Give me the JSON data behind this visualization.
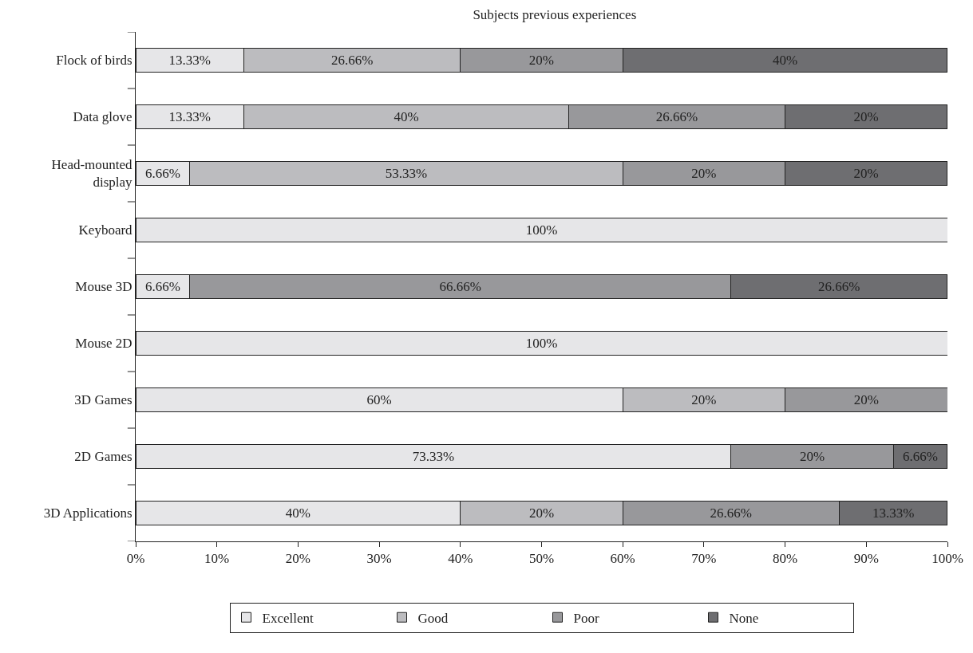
{
  "chart_data": {
    "type": "bar",
    "orientation": "horizontal",
    "stacked": true,
    "title": "Subjects previous experiences",
    "categories": [
      "Flock of birds",
      "Data glove",
      "Head-mounted\ndisplay",
      "Keyboard",
      "Mouse 3D",
      "Mouse 2D",
      "3D Games",
      "2D Games",
      "3D Applications"
    ],
    "series": [
      {
        "name": "Excellent",
        "color": "#e6e6e8",
        "values": [
          13.33,
          13.33,
          6.66,
          100,
          6.66,
          100,
          60,
          73.33,
          40
        ],
        "value_labels": [
          "13.33%",
          "13.33%",
          "6.66%",
          "100%",
          "6.66%",
          "100%",
          "60%",
          "73.33%",
          "40%"
        ]
      },
      {
        "name": "Good",
        "color": "#bcbcbf",
        "values": [
          26.66,
          40,
          53.33,
          null,
          null,
          null,
          20,
          null,
          20
        ],
        "value_labels": [
          "26.66%",
          "40%",
          "53.33%",
          null,
          null,
          null,
          "20%",
          null,
          "20%"
        ]
      },
      {
        "name": "Poor",
        "color": "#98989b",
        "values": [
          20,
          26.66,
          20,
          null,
          66.66,
          null,
          20,
          20,
          26.66
        ],
        "value_labels": [
          "20%",
          "26.66%",
          "20%",
          null,
          "66.66%",
          null,
          "20%",
          "20%",
          "26.66%"
        ]
      },
      {
        "name": "None",
        "color": "#6e6e71",
        "values": [
          40,
          20,
          20,
          null,
          26.66,
          null,
          null,
          6.66,
          13.33
        ],
        "value_labels": [
          "40%",
          "20%",
          "20%",
          null,
          "26.66%",
          null,
          null,
          "6.66%",
          "13.33%"
        ]
      }
    ],
    "xlim": [
      0,
      100
    ],
    "xticks": [
      {
        "value": 0,
        "label": "0%"
      },
      {
        "value": 10,
        "label": "10%"
      },
      {
        "value": 20,
        "label": "20%"
      },
      {
        "value": 30,
        "label": "30%"
      },
      {
        "value": 40,
        "label": "40%"
      },
      {
        "value": 50,
        "label": "50%"
      },
      {
        "value": 60,
        "label": "60%"
      },
      {
        "value": 70,
        "label": "70%"
      },
      {
        "value": 80,
        "label": "80%"
      },
      {
        "value": 90,
        "label": "90%"
      },
      {
        "value": 100,
        "label": "100%"
      }
    ],
    "grid": false,
    "legend": "bottom"
  }
}
